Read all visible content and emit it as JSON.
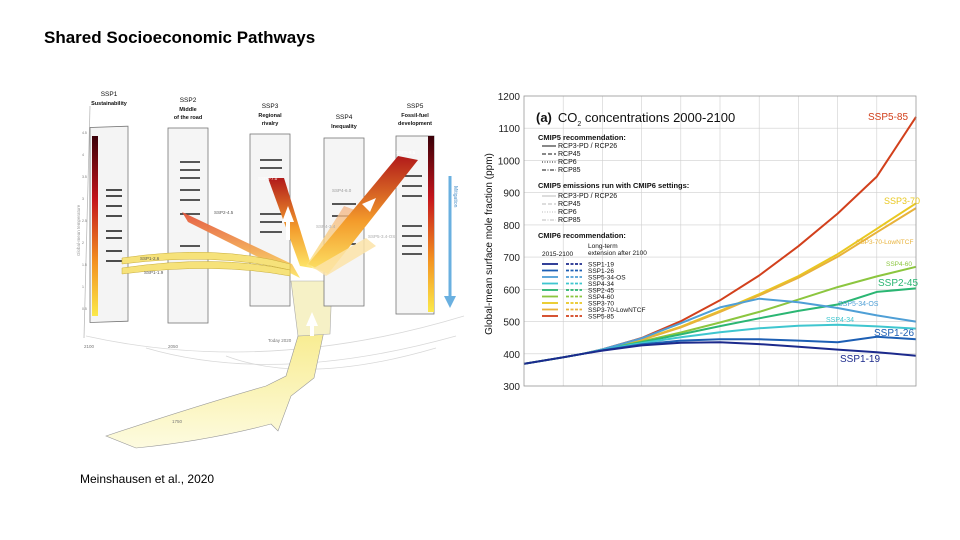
{
  "slide": {
    "title": "Shared Socioeconomic Pathways",
    "citation": "Meinshausen et al., 2020"
  },
  "left_figure": {
    "ssp_panels": [
      {
        "id": "SSP1",
        "name": "Sustainability"
      },
      {
        "id": "SSP2",
        "name": "Middle of the road"
      },
      {
        "id": "SSP3",
        "name": "Regional rivalry"
      },
      {
        "id": "SSP4",
        "name": "Inequality"
      },
      {
        "id": "SSP5",
        "name": "Fossil-fuel development"
      }
    ],
    "scenario_labels": [
      "SSP1-2.6",
      "SSP1-1.9",
      "SSP2-4.5",
      "SSP3-7.0",
      "SSP4-6.0",
      "SSP4-3.4",
      "SSP5-3.4-OS",
      "SSP5-8.5"
    ],
    "axis_label": "Global-mean temperature",
    "mitigation_label": "Mitigation",
    "time_labels": [
      "2100",
      "2050",
      "Today 2020",
      "1750"
    ],
    "temperature_ticks": [
      "4.5",
      "4",
      "3.5",
      "3",
      "2.5",
      "2",
      "1.5",
      "1",
      "0.5"
    ]
  },
  "co2_chart": {
    "panel_letter": "(a)",
    "title_prefix": "CO",
    "title_sub": "2",
    "title_suffix": " concentrations 2000-2100",
    "ylabel": "Global-mean surface mole fraction (ppm)",
    "legend": {
      "cmip5_header": "CMIP5 recommendation:",
      "cmip5_items": [
        "RCP3-PD / RCP26",
        "RCP45",
        "RCP6",
        "RCP85"
      ],
      "cmip5_emis_header": "CMIP5 emissions run with CMIP6 settings:",
      "cmip5_emis_items": [
        "RCP3-PD / RCP26",
        "RCP45",
        "RCP6",
        "RCP85"
      ],
      "cmip6_header": "CMIP6 recommendation:",
      "col1_header": "2015-2100",
      "col2_header": "Long-term extension after 2100",
      "cmip6_items": [
        "SSP1-19",
        "SSP1-26",
        "SSP5-34-OS",
        "SSP4-34",
        "SSP2-45",
        "SSP4-60",
        "SSP3-70",
        "SSP3-70-LowNTCF",
        "SSP5-85"
      ]
    },
    "end_labels": [
      "SSP5-85",
      "SSP3-70",
      "SSP3-70-LowNTCF",
      "SSP4-60",
      "SSP2-45",
      "SSP5-34-OS",
      "SSP4-34",
      "SSP1-26",
      "SSP1-19"
    ]
  },
  "chart_data": {
    "type": "line",
    "title": "(a) CO2 concentrations 2000-2100",
    "ylabel": "Global-mean surface mole fraction (ppm)",
    "xlabel": "",
    "xlim": [
      2000,
      2100
    ],
    "ylim": [
      300,
      1200
    ],
    "yticks": [
      300,
      400,
      500,
      600,
      700,
      800,
      900,
      1000,
      1100,
      1200
    ],
    "grid": true,
    "x": [
      2000,
      2010,
      2015,
      2020,
      2030,
      2040,
      2050,
      2060,
      2070,
      2080,
      2090,
      2100
    ],
    "series": [
      {
        "name": "SSP5-85",
        "color": "#d2401c",
        "values": [
          369,
          389,
          400,
          414,
          449,
          501,
          566,
          643,
          734,
          835,
          950,
          1135
        ]
      },
      {
        "name": "SSP3-70",
        "color": "#e9c820",
        "values": [
          369,
          389,
          400,
          413,
          444,
          484,
          533,
          585,
          641,
          709,
          788,
          867
        ]
      },
      {
        "name": "SSP3-70-LowNTCF",
        "color": "#e8b23a",
        "values": [
          369,
          389,
          400,
          413,
          443,
          482,
          530,
          581,
          636,
          701,
          777,
          852
        ]
      },
      {
        "name": "SSP4-60",
        "color": "#8cc63f",
        "values": [
          369,
          389,
          400,
          412,
          438,
          466,
          497,
          530,
          568,
          607,
          640,
          670
        ]
      },
      {
        "name": "SSP2-45",
        "color": "#2bb673",
        "values": [
          369,
          389,
          400,
          412,
          436,
          460,
          486,
          510,
          533,
          553,
          592,
          603
        ]
      },
      {
        "name": "SSP5-34-OS",
        "color": "#4f9fd6",
        "values": [
          369,
          389,
          400,
          414,
          448,
          495,
          544,
          571,
          560,
          542,
          519,
          500
        ]
      },
      {
        "name": "SSP4-34",
        "color": "#3fc6cf",
        "values": [
          369,
          389,
          400,
          412,
          433,
          451,
          467,
          479,
          487,
          490,
          485,
          478
        ]
      },
      {
        "name": "SSP1-26",
        "color": "#1d5fb4",
        "values": [
          369,
          389,
          400,
          411,
          429,
          441,
          445,
          445,
          441,
          436,
          453,
          445
        ]
      },
      {
        "name": "SSP1-19",
        "color": "#1c2a8c",
        "values": [
          369,
          389,
          400,
          410,
          426,
          434,
          436,
          430,
          422,
          413,
          405,
          394
        ]
      }
    ]
  }
}
